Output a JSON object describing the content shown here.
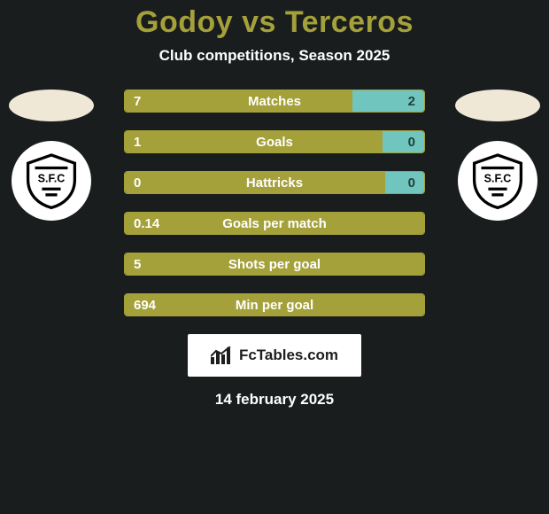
{
  "background_color": "#1a1d1d",
  "title": {
    "text": "Godoy vs Terceros",
    "color": "#a4a03a",
    "fontsize": 34
  },
  "subtitle": {
    "text": "Club competitions, Season 2025",
    "color": "#ffffff",
    "fontsize": 17
  },
  "left_side": {
    "flag_color": "#f0e8d7",
    "badge_bg": "#ffffff",
    "badge_text": "S.F.C",
    "badge_text_color": "#000000"
  },
  "right_side": {
    "flag_color": "#f0e8d7",
    "badge_bg": "#ffffff",
    "badge_text": "S.F.C",
    "badge_text_color": "#000000"
  },
  "bars_common": {
    "height": 26,
    "border_color": "#a4a03a",
    "border_width": 1,
    "left_color": "#a4a03a",
    "right_color": "#70c6be",
    "label_color": "#ffffff",
    "value_color": "#ffffff",
    "value_color_right": "#20403d",
    "label_fontsize": 15,
    "value_fontsize": 15,
    "track_bg": "#1a1d1d"
  },
  "bars": [
    {
      "label": "Matches",
      "left_value": "7",
      "right_value": "2",
      "left_pct": 76,
      "right_pct": 24
    },
    {
      "label": "Goals",
      "left_value": "1",
      "right_value": "0",
      "left_pct": 86,
      "right_pct": 14
    },
    {
      "label": "Hattricks",
      "left_value": "0",
      "right_value": "0",
      "left_pct": 87,
      "right_pct": 13
    },
    {
      "label": "Goals per match",
      "left_value": "0.14",
      "right_value": "",
      "left_pct": 100,
      "right_pct": 0
    },
    {
      "label": "Shots per goal",
      "left_value": "5",
      "right_value": "",
      "left_pct": 100,
      "right_pct": 0
    },
    {
      "label": "Min per goal",
      "left_value": "694",
      "right_value": "",
      "left_pct": 100,
      "right_pct": 0
    }
  ],
  "brand": {
    "text": "FcTables.com",
    "bg": "#ffffff",
    "text_color": "#1e1e1e",
    "icon_color": "#1e1e1e",
    "fontsize": 17
  },
  "date": {
    "text": "14 february 2025",
    "color": "#ffffff",
    "fontsize": 17
  }
}
